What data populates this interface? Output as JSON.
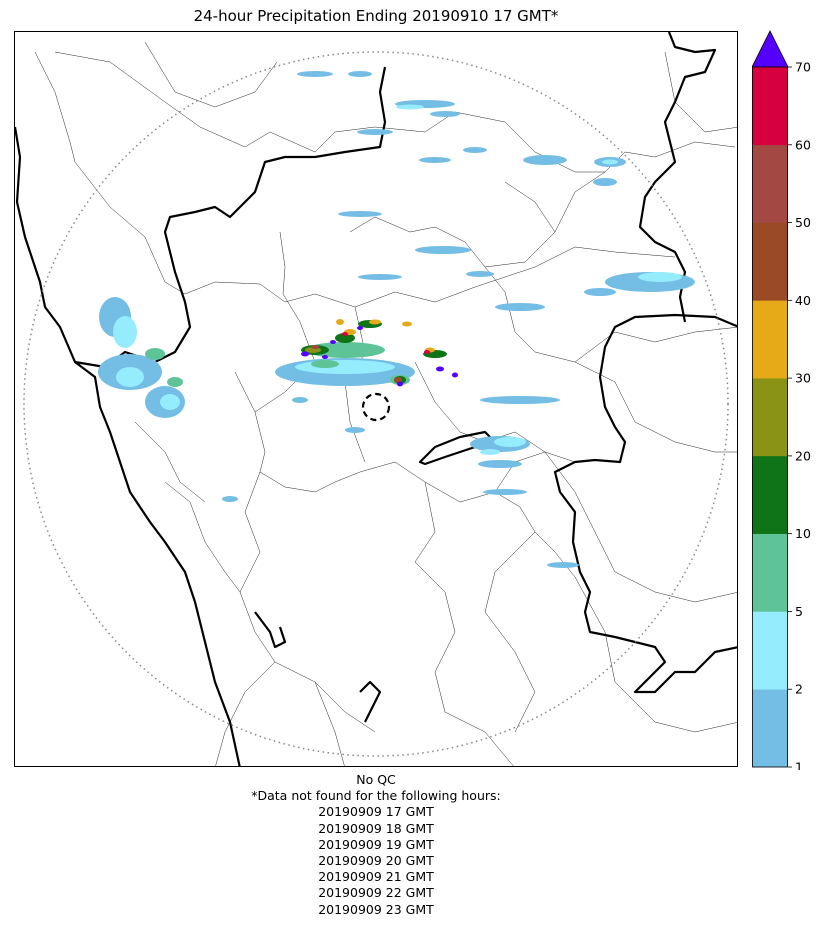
{
  "title": "24-hour Precipitation Ending 20190910 17 GMT*",
  "colorbar": {
    "ticks": [
      "1",
      "2",
      "5",
      "10",
      "20",
      "30",
      "40",
      "50",
      "60",
      "70"
    ],
    "bins": [
      {
        "from": 1,
        "to": 2,
        "color": "#74bde4"
      },
      {
        "from": 2,
        "to": 5,
        "color": "#95ecfd"
      },
      {
        "from": 5,
        "to": 10,
        "color": "#5ec498"
      },
      {
        "from": 10,
        "to": 20,
        "color": "#0f7318"
      },
      {
        "from": 20,
        "to": 30,
        "color": "#8a9315"
      },
      {
        "from": 30,
        "to": 40,
        "color": "#e6aa19"
      },
      {
        "from": 40,
        "to": 50,
        "color": "#9a4a24"
      },
      {
        "from": 50,
        "to": 60,
        "color": "#a34842"
      },
      {
        "from": 60,
        "to": 70,
        "color": "#d6003f"
      }
    ],
    "over_color": "#5500ff",
    "extend": "max"
  },
  "map": {
    "range_ring": "dotted gray circle",
    "radar_marker": "dashed black circle",
    "borders": {
      "coastline": "thick black",
      "state": "thick black",
      "district": "thin black"
    }
  },
  "notes": {
    "qc": "No QC",
    "missing_header": "*Data not found for the following hours:",
    "missing_hours": [
      "20190909 17 GMT",
      "20190909 18 GMT",
      "20190909 19 GMT",
      "20190909 20 GMT",
      "20190909 21 GMT",
      "20190909 22 GMT",
      "20190909 23 GMT"
    ]
  }
}
